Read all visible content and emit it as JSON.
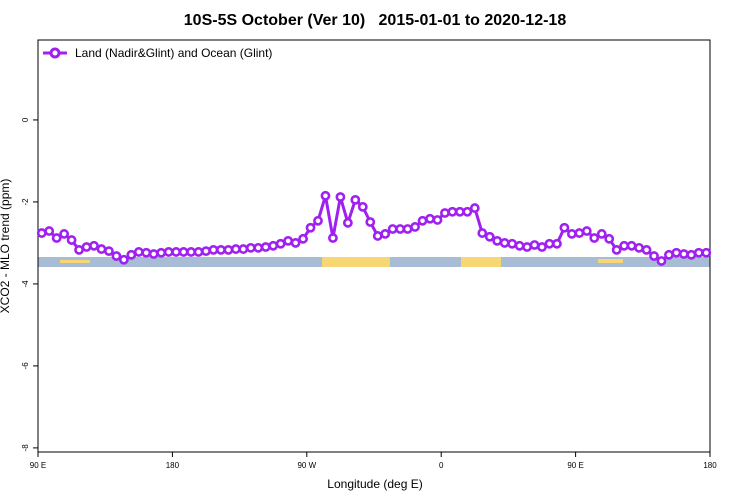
{
  "chart_data": {
    "type": "line",
    "title": "10S-5S October (Ver 10)   2015-01-01 to 2020-12-18",
    "x_label": "Longitude (deg E)",
    "y_label": "XCO2 - MLO trend (ppm)",
    "xlim": [
      90,
      540
    ],
    "xticks": [
      {
        "value": 90,
        "label": "90 E"
      },
      180,
      {
        "value": 270,
        "label": "90 W"
      },
      {
        "value": 360,
        "label": "0"
      },
      {
        "value": 450,
        "label": "90 E"
      },
      {
        "value": 540,
        "label": "180"
      }
    ],
    "ylim": [
      -8.1,
      1.95
    ],
    "yticks": [
      -8,
      -6,
      -4,
      -2,
      0
    ],
    "legend": "top-left",
    "x": [
      92.5,
      97.5,
      102.5,
      107.5,
      112.5,
      117.5,
      122.5,
      127.5,
      132.5,
      137.5,
      142.5,
      147.5,
      152.5,
      157.5,
      162.5,
      167.5,
      172.5,
      177.5,
      182.5,
      187.5,
      192.5,
      197.5,
      202.5,
      207.5,
      212.5,
      217.5,
      222.5,
      227.5,
      232.5,
      237.5,
      242.5,
      247.5,
      252.5,
      257.5,
      262.5,
      267.5,
      272.5,
      277.5,
      282.5,
      287.5,
      292.5,
      297.5,
      302.5,
      307.5,
      312.5,
      317.5,
      322.5,
      327.5,
      332.5,
      337.5,
      342.5,
      347.5,
      352.5,
      357.5,
      362.5,
      367.5,
      372.5,
      377.5,
      382.5,
      387.5,
      392.5,
      397.5,
      402.5,
      407.5,
      412.5,
      417.5,
      422.5,
      427.5,
      432.5,
      437.5,
      442.5,
      447.5,
      452.5,
      457.5,
      462.5,
      467.5,
      472.5,
      477.5,
      482.5,
      487.5,
      492.5,
      497.5,
      502.5,
      507.5,
      512.5,
      517.5,
      522.5,
      527.5,
      532.5,
      537.5
    ],
    "series": [
      {
        "name": "Land (Nadir&Glint) and Ocean (Glint)",
        "color": "#a020f0",
        "values": [
          -2.76,
          -2.71,
          -2.88,
          -2.78,
          -2.93,
          -3.17,
          -3.1,
          -3.07,
          -3.15,
          -3.2,
          -3.32,
          -3.41,
          -3.29,
          -3.22,
          -3.24,
          -3.27,
          -3.24,
          -3.22,
          -3.22,
          -3.22,
          -3.22,
          -3.22,
          -3.2,
          -3.17,
          -3.17,
          -3.17,
          -3.15,
          -3.15,
          -3.12,
          -3.12,
          -3.1,
          -3.07,
          -3.02,
          -2.95,
          -3.0,
          -2.9,
          -2.63,
          -2.46,
          -1.85,
          -2.88,
          -1.88,
          -2.51,
          -1.95,
          -2.12,
          -2.49,
          -2.83,
          -2.78,
          -2.66,
          -2.66,
          -2.66,
          -2.61,
          -2.46,
          -2.41,
          -2.44,
          -2.27,
          -2.24,
          -2.24,
          -2.24,
          -2.15,
          -2.76,
          -2.85,
          -2.95,
          -3.0,
          -3.02,
          -3.07,
          -3.1,
          -3.05,
          -3.1,
          -3.02,
          -3.02,
          -2.63,
          -2.78,
          -2.76,
          -2.71,
          -2.88,
          -2.78,
          -2.9,
          -3.17,
          -3.07,
          -3.07,
          -3.12,
          -3.17,
          -3.32,
          -3.44,
          -3.29,
          -3.24,
          -3.27,
          -3.29,
          -3.24,
          -3.24
        ]
      }
    ]
  }
}
